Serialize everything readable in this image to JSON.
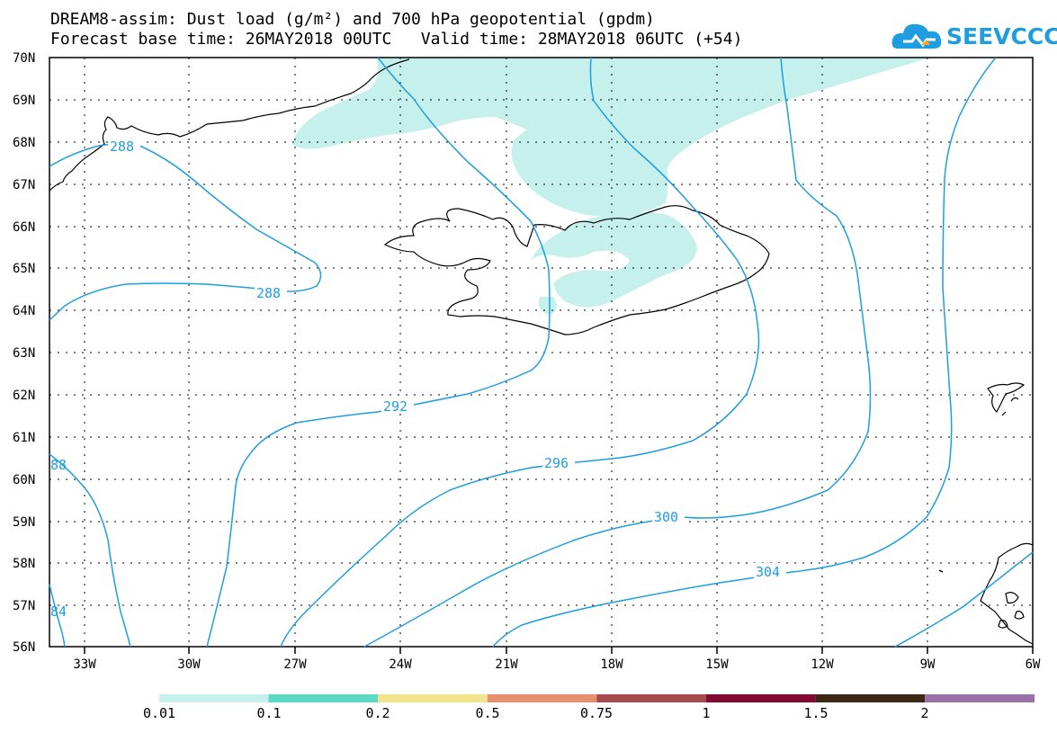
{
  "header": {
    "title_line1": "DREAM8-assim: Dust load (g/m²) and 700 hPa geopotential (gpdm)",
    "title_line2": "Forecast base time: 26MAY2018 00UTC   Valid time: 28MAY2018 06UTC (+54)",
    "logo_text": "SEEVCCC"
  },
  "map": {
    "lat_labels": [
      "70N",
      "69N",
      "68N",
      "67N",
      "66N",
      "65N",
      "64N",
      "63N",
      "62N",
      "61N",
      "60N",
      "59N",
      "58N",
      "57N",
      "56N"
    ],
    "lon_labels": [
      "33W",
      "30W",
      "27W",
      "24W",
      "21W",
      "18W",
      "15W",
      "12W",
      "9W",
      "6W"
    ],
    "contour_labels": [
      "288",
      "288",
      "292",
      "296",
      "300",
      "304",
      "88",
      "84"
    ],
    "colors": {
      "contour": "#1e9ee0",
      "dust_lowest": "#c6f0eb",
      "coast": "#000000"
    }
  },
  "legend": {
    "labels": [
      "0.01",
      "0.1",
      "0.2",
      "0.5",
      "0.75",
      "1",
      "1.5",
      "2"
    ],
    "colors": [
      "#c6f0eb",
      "#5cd9c2",
      "#f3e38a",
      "#e88f6d",
      "#a84b4e",
      "#820a32",
      "#3b2714",
      "#9b70a6"
    ]
  }
}
